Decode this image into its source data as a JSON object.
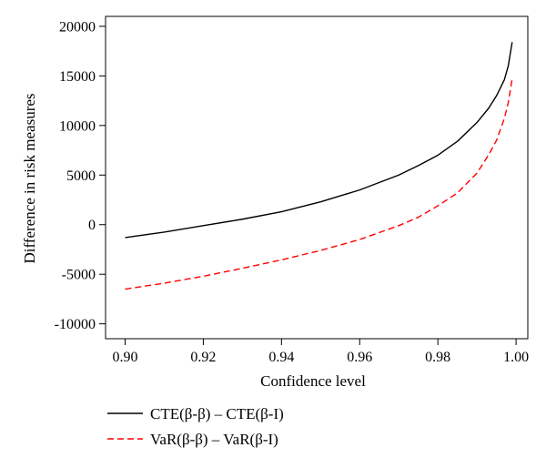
{
  "chart_data": {
    "type": "line",
    "title": "",
    "xlabel": "Confidence level",
    "ylabel": "Difference in risk measures",
    "xlim": [
      0.895,
      1.003
    ],
    "ylim": [
      -11500,
      21000
    ],
    "x_ticks": [
      0.9,
      0.92,
      0.94,
      0.96,
      0.98,
      1.0
    ],
    "x_tick_labels": [
      "0.90",
      "0.92",
      "0.94",
      "0.96",
      "0.98",
      "1.00"
    ],
    "y_ticks": [
      -10000,
      -5000,
      0,
      5000,
      10000,
      15000,
      20000
    ],
    "y_tick_labels": [
      "-10000",
      "-5000",
      "0",
      "5000",
      "10000",
      "15000",
      "20000"
    ],
    "grid": false,
    "legend_position": "bottom",
    "series": [
      {
        "name": "CTE(β-β) – CTE(β-I)",
        "style": "solid",
        "color": "#000000",
        "x": [
          0.9,
          0.91,
          0.92,
          0.93,
          0.94,
          0.95,
          0.96,
          0.97,
          0.975,
          0.98,
          0.985,
          0.99,
          0.993,
          0.995,
          0.997,
          0.998,
          0.999
        ],
        "y": [
          -1300,
          -750,
          -100,
          550,
          1300,
          2300,
          3500,
          5000,
          5950,
          7000,
          8400,
          10300,
          11750,
          13000,
          14600,
          16000,
          18400
        ]
      },
      {
        "name": "VaR(β-β) – VaR(β-I)",
        "style": "dashed",
        "color": "#ff0000",
        "x": [
          0.9,
          0.91,
          0.92,
          0.93,
          0.94,
          0.95,
          0.96,
          0.97,
          0.975,
          0.98,
          0.985,
          0.99,
          0.993,
          0.995,
          0.997,
          0.998,
          0.999
        ],
        "y": [
          -6500,
          -5900,
          -5200,
          -4400,
          -3550,
          -2600,
          -1500,
          -100,
          750,
          1900,
          3200,
          5200,
          7050,
          8500,
          10700,
          12300,
          14700
        ]
      }
    ]
  }
}
